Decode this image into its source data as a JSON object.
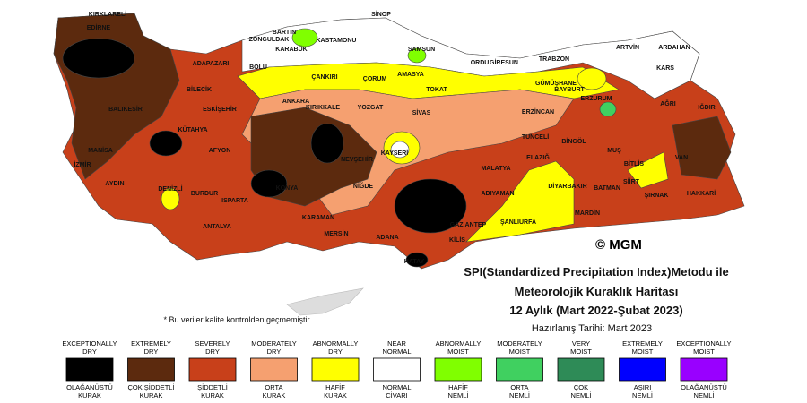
{
  "map": {
    "cities": [
      "KIRKLARELİ",
      "EDİRNE",
      "SİNOP",
      "BARTIN",
      "ZONGULDAK",
      "KASTAMONU",
      "KARABÜK",
      "SAMSUN",
      "ORDU",
      "GİRESUN",
      "TRABZON",
      "ARTVİN",
      "ARDAHAN",
      "KARS",
      "BOLU",
      "ADAPAZARI",
      "BİLECİK",
      "ÇANKIRI",
      "AMASYA",
      "ÇORUM",
      "TOKAT",
      "GÜMÜŞHANE",
      "BAYBURT",
      "ERZURUM",
      "AĞRI",
      "IĞDIR",
      "ESKİŞEHİR",
      "ANKARA",
      "KIRIKKALE",
      "YOZGAT",
      "SİVAS",
      "ERZİNCAN",
      "TUNCELİ",
      "BİNGÖL",
      "MUŞ",
      "BİTLİS",
      "VAN",
      "KÜTAHYA",
      "BALIKESİR",
      "MANİSA",
      "İZMİR",
      "AFYON",
      "KAYSERİ",
      "NEVŞEHİR",
      "ELAZIĞ",
      "MALATYA",
      "AYDIN",
      "DENİZLİ",
      "BURDUR",
      "ISPARTA",
      "KONYA",
      "NİĞDE",
      "ADIYAMAN",
      "DİYARBAKIR",
      "BATMAN",
      "SİİRT",
      "ŞIRNAK",
      "HAKKARİ",
      "KARAMAN",
      "ANTALYA",
      "MERSİN",
      "ADANA",
      "GAZİANTEP",
      "ŞANLIURFA",
      "MARDİN",
      "KİLİS",
      "HATAY"
    ],
    "copyright": "© MGM"
  },
  "title": {
    "line1": "SPI(Standardized Precipitation Index)Metodu ile",
    "line2": "Meteorolojik Kuraklık Haritası",
    "line3": "12 Aylık (Mart 2022-Şubat 2023)",
    "date": "Hazırlanış Tarihi: Mart 2023"
  },
  "note": "* Bu veriler kalite kontrolden geçmemiştir.",
  "legend": [
    {
      "en": [
        "EXCEPTIONALLY",
        "DRY"
      ],
      "tr": [
        "OLAĞANÜSTÜ",
        "KURAK"
      ],
      "color": "#000000"
    },
    {
      "en": [
        "EXTREMELY",
        "DRY"
      ],
      "tr": [
        "ÇOK ŞİDDETLİ",
        "KURAK"
      ],
      "color": "#5c2a0e"
    },
    {
      "en": [
        "SEVERELY",
        "DRY"
      ],
      "tr": [
        "ŞİDDETLİ",
        "KURAK"
      ],
      "color": "#c8401a"
    },
    {
      "en": [
        "MODERATELY",
        "DRY"
      ],
      "tr": [
        "ORTA",
        "KURAK"
      ],
      "color": "#f5a070"
    },
    {
      "en": [
        "ABNORMALLY",
        "DRY"
      ],
      "tr": [
        "HAFİF",
        "KURAK"
      ],
      "color": "#ffff00"
    },
    {
      "en": [
        "NEAR",
        "NORMAL"
      ],
      "tr": [
        "NORMAL",
        "CİVARI"
      ],
      "color": "#ffffff"
    },
    {
      "en": [
        "ABNORMALLY",
        "MOIST"
      ],
      "tr": [
        "HAFİF",
        "NEMLİ"
      ],
      "color": "#80ff00"
    },
    {
      "en": [
        "MODERATELY",
        "MOIST"
      ],
      "tr": [
        "ORTA",
        "NEMLİ"
      ],
      "color": "#40d060"
    },
    {
      "en": [
        "VERY",
        "MOIST"
      ],
      "tr": [
        "ÇOK",
        "NEMLİ"
      ],
      "color": "#2e8b57"
    },
    {
      "en": [
        "EXTREMELY",
        "MOIST"
      ],
      "tr": [
        "AŞIRI",
        "NEMLİ"
      ],
      "color": "#0000ff"
    },
    {
      "en": [
        "EXCEPTIONALLY",
        "MOIST"
      ],
      "tr": [
        "OLAĞANÜSTÜ",
        "NEMLİ"
      ],
      "color": "#9900ff"
    }
  ]
}
